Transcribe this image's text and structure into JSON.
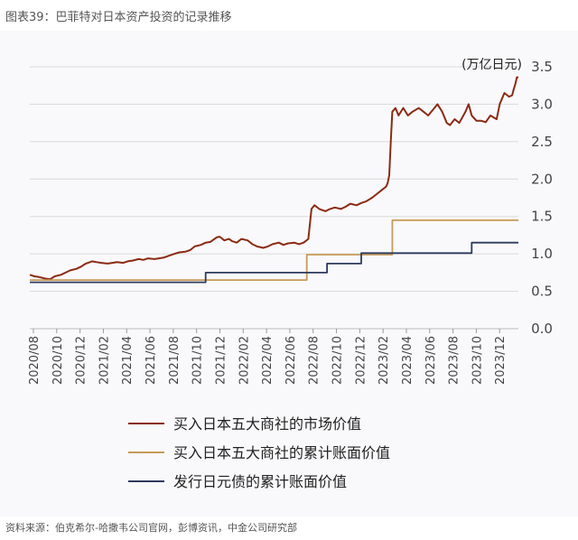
{
  "figure": {
    "title": "图表39：巴菲特对日本资产投资的记录推移",
    "source": "资料来源：伯克希尔-哈撒韦公司官网，彭博资讯，中金公司研究部"
  },
  "chart_data": {
    "type": "line",
    "unit_label": "(万亿日元)",
    "ylim": [
      0,
      3.5
    ],
    "y_ticks": [
      "0.0",
      "0.5",
      "1.0",
      "1.5",
      "2.0",
      "2.5",
      "3.0",
      "3.5"
    ],
    "x_ticks": [
      "2020/08",
      "2020/10",
      "2020/12",
      "2021/02",
      "2021/04",
      "2021/06",
      "2021/08",
      "2021/10",
      "2021/12",
      "2022/02",
      "2022/04",
      "2022/06",
      "2022/08",
      "2022/10",
      "2022/12",
      "2023/02",
      "2023/04",
      "2023/06",
      "2023/08",
      "2023/10",
      "2023/12"
    ],
    "grid": "horizontal",
    "legend_position": "bottom",
    "series": [
      {
        "name": "买入日本五大商社的市场价值",
        "color": "#8b2a13",
        "step": false,
        "points": [
          [
            0,
            0.72
          ],
          [
            0.3,
            0.7
          ],
          [
            0.6,
            0.69
          ],
          [
            1,
            0.67
          ],
          [
            1.3,
            0.66
          ],
          [
            1.6,
            0.7
          ],
          [
            2,
            0.72
          ],
          [
            2.3,
            0.75
          ],
          [
            2.6,
            0.78
          ],
          [
            3,
            0.8
          ],
          [
            3.3,
            0.83
          ],
          [
            3.6,
            0.87
          ],
          [
            4,
            0.9
          ],
          [
            4.3,
            0.89
          ],
          [
            4.6,
            0.88
          ],
          [
            5,
            0.87
          ],
          [
            5.3,
            0.88
          ],
          [
            5.6,
            0.89
          ],
          [
            6,
            0.88
          ],
          [
            6.3,
            0.9
          ],
          [
            6.6,
            0.91
          ],
          [
            7,
            0.93
          ],
          [
            7.3,
            0.92
          ],
          [
            7.6,
            0.94
          ],
          [
            8,
            0.93
          ],
          [
            8.3,
            0.94
          ],
          [
            8.6,
            0.95
          ],
          [
            9,
            0.98
          ],
          [
            9.3,
            1.0
          ],
          [
            9.6,
            1.02
          ],
          [
            10,
            1.03
          ],
          [
            10.3,
            1.05
          ],
          [
            10.6,
            1.1
          ],
          [
            11,
            1.12
          ],
          [
            11.3,
            1.15
          ],
          [
            11.6,
            1.16
          ],
          [
            12,
            1.22
          ],
          [
            12.2,
            1.23
          ],
          [
            12.5,
            1.18
          ],
          [
            12.8,
            1.2
          ],
          [
            13,
            1.17
          ],
          [
            13.3,
            1.15
          ],
          [
            13.6,
            1.2
          ],
          [
            14,
            1.18
          ],
          [
            14.3,
            1.13
          ],
          [
            14.6,
            1.1
          ],
          [
            15,
            1.08
          ],
          [
            15.3,
            1.1
          ],
          [
            15.6,
            1.13
          ],
          [
            16,
            1.15
          ],
          [
            16.3,
            1.12
          ],
          [
            16.6,
            1.14
          ],
          [
            17,
            1.15
          ],
          [
            17.3,
            1.13
          ],
          [
            17.6,
            1.15
          ],
          [
            17.9,
            1.2
          ],
          [
            18.1,
            1.6
          ],
          [
            18.3,
            1.65
          ],
          [
            18.6,
            1.6
          ],
          [
            19,
            1.57
          ],
          [
            19.3,
            1.6
          ],
          [
            19.6,
            1.62
          ],
          [
            20,
            1.6
          ],
          [
            20.3,
            1.63
          ],
          [
            20.6,
            1.67
          ],
          [
            21,
            1.65
          ],
          [
            21.3,
            1.68
          ],
          [
            21.6,
            1.7
          ],
          [
            22,
            1.75
          ],
          [
            22.3,
            1.8
          ],
          [
            22.6,
            1.85
          ],
          [
            22.9,
            1.9
          ],
          [
            23,
            1.95
          ],
          [
            23.1,
            2.05
          ],
          [
            23.2,
            2.5
          ],
          [
            23.3,
            2.9
          ],
          [
            23.5,
            2.95
          ],
          [
            23.7,
            2.85
          ],
          [
            24,
            2.95
          ],
          [
            24.3,
            2.85
          ],
          [
            24.6,
            2.9
          ],
          [
            25,
            2.95
          ],
          [
            25.3,
            2.9
          ],
          [
            25.6,
            2.85
          ],
          [
            26,
            2.95
          ],
          [
            26.2,
            3.0
          ],
          [
            26.5,
            2.9
          ],
          [
            26.8,
            2.75
          ],
          [
            27,
            2.72
          ],
          [
            27.3,
            2.8
          ],
          [
            27.6,
            2.75
          ],
          [
            28,
            2.9
          ],
          [
            28.2,
            3.0
          ],
          [
            28.4,
            2.85
          ],
          [
            28.7,
            2.78
          ],
          [
            29,
            2.78
          ],
          [
            29.3,
            2.76
          ],
          [
            29.6,
            2.85
          ],
          [
            30,
            2.8
          ],
          [
            30.2,
            3.0
          ],
          [
            30.5,
            3.15
          ],
          [
            30.8,
            3.1
          ],
          [
            31,
            3.12
          ],
          [
            31.1,
            3.2
          ],
          [
            31.2,
            3.27
          ],
          [
            31.3,
            3.36
          ],
          [
            31.4,
            3.36
          ]
        ]
      },
      {
        "name": "买入日本五大商社的累计账面价值",
        "color": "#c79a59",
        "step": true,
        "points": [
          [
            0,
            0.65
          ],
          [
            17.8,
            0.65
          ],
          [
            17.8,
            0.99
          ],
          [
            23.3,
            0.99
          ],
          [
            23.3,
            1.45
          ],
          [
            31.4,
            1.45
          ]
        ]
      },
      {
        "name": "发行日元债的累计账面价值",
        "color": "#2d3b5e",
        "step": true,
        "points": [
          [
            0,
            0.62
          ],
          [
            11.3,
            0.62
          ],
          [
            11.3,
            0.75
          ],
          [
            19.1,
            0.75
          ],
          [
            19.1,
            0.87
          ],
          [
            21.3,
            0.87
          ],
          [
            21.3,
            1.01
          ],
          [
            28.4,
            1.01
          ],
          [
            28.4,
            1.15
          ],
          [
            31.4,
            1.15
          ]
        ]
      }
    ]
  }
}
